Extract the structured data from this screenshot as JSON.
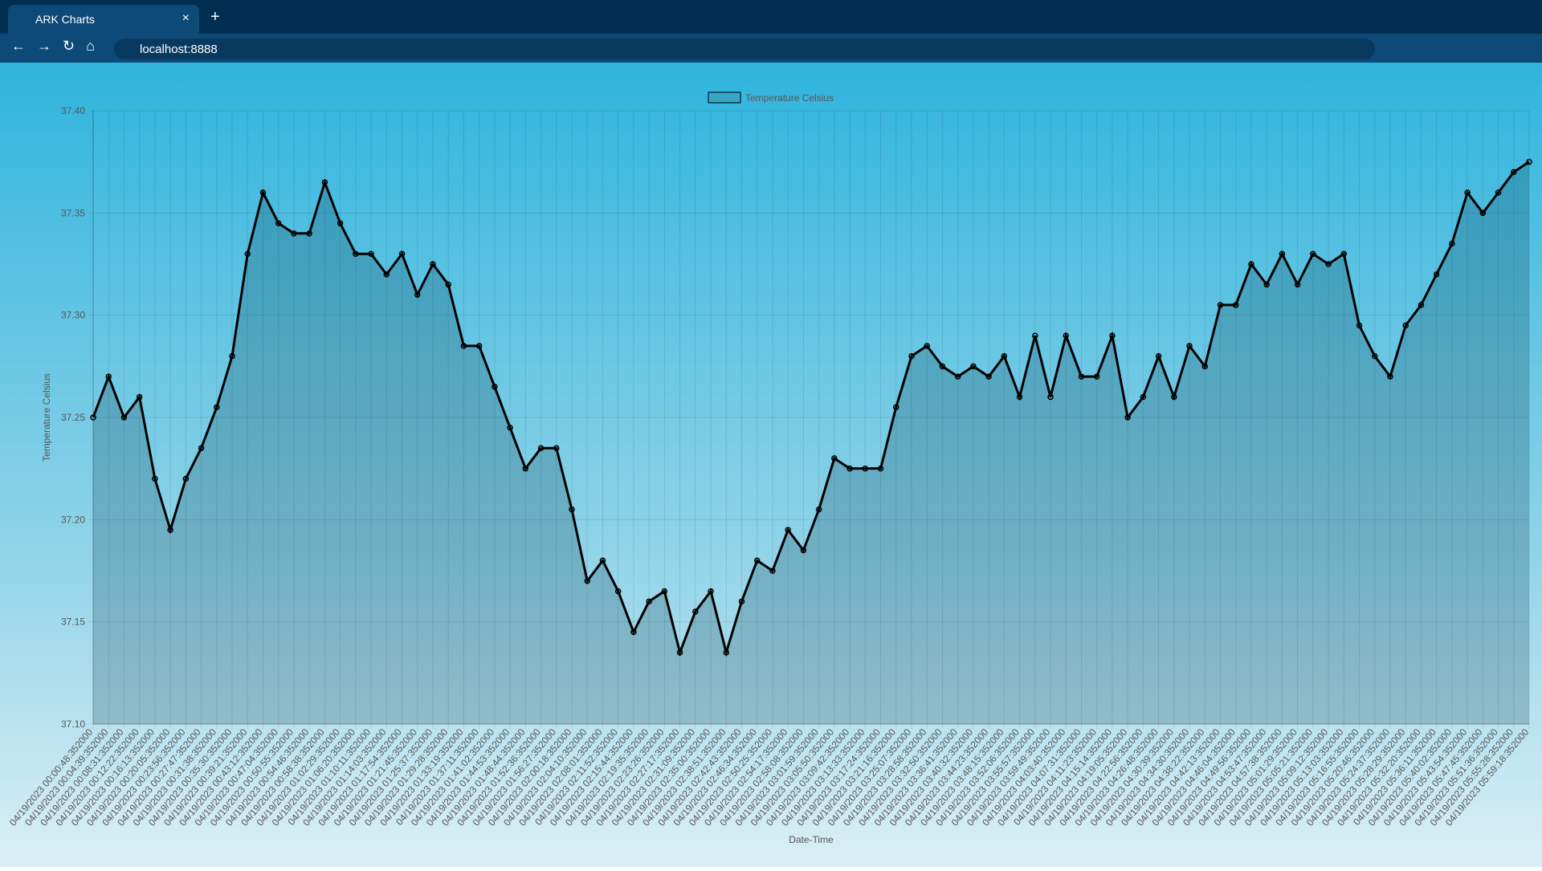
{
  "browser": {
    "tab_title": "ARK Charts",
    "url": "localhost:8888"
  },
  "chart_data": {
    "type": "line",
    "x_label": "Date-Time",
    "y_label": "Temperature Celsius",
    "categories": [
      "04/19/2023 00:00:48:352000",
      "04/19/2023 00:04:39:352000",
      "04/19/2023 00:08:31:352000",
      "04/19/2023 00:12:22:352000",
      "04/19/2023 00:16:13:352000",
      "04/19/2023 00:20:05:352000",
      "04/19/2023 00:23:56:352000",
      "04/19/2023 00:27:47:352000",
      "04/19/2023 00:31:38:352000",
      "04/19/2023 00:35:30:352000",
      "04/19/2023 00:39:21:352000",
      "04/19/2023 00:43:12:352000",
      "04/19/2023 00:47:04:352000",
      "04/19/2023 00:50:55:352000",
      "04/19/2023 00:54:46:352000",
      "04/19/2023 00:58:38:352000",
      "04/19/2023 01:02:29:352000",
      "04/19/2023 01:06:20:352000",
      "04/19/2023 01:10:11:352000",
      "04/19/2023 01:14:03:352000",
      "04/19/2023 01:17:54:352000",
      "04/19/2023 01:21:45:352000",
      "04/19/2023 01:25:37:352000",
      "04/19/2023 01:29:28:352000",
      "04/19/2023 01:33:19:352000",
      "04/19/2023 01:37:11:352000",
      "04/19/2023 01:41:02:352000",
      "04/19/2023 01:44:53:352000",
      "04/19/2023 01:48:44:352000",
      "04/19/2023 01:52:36:352000",
      "04/19/2023 01:56:27:352000",
      "04/19/2023 02:00:18:352000",
      "04/19/2023 02:04:10:352000",
      "04/19/2023 02:08:01:352000",
      "04/19/2023 02:11:52:352000",
      "04/19/2023 02:15:44:352000",
      "04/19/2023 02:19:35:352000",
      "04/19/2023 02:23:26:352000",
      "04/19/2023 02:27:17:352000",
      "04/19/2023 02:31:09:352000",
      "04/19/2023 02:35:00:352000",
      "04/19/2023 02:38:51:352000",
      "04/19/2023 02:42:43:352000",
      "04/19/2023 02:46:34:352000",
      "04/19/2023 02:50:25:352000",
      "04/19/2023 02:54:17:352000",
      "04/19/2023 02:58:08:352000",
      "04/19/2023 03:01:59:352000",
      "04/19/2023 03:05:50:352000",
      "04/19/2023 03:09:42:352000",
      "04/19/2023 03:13:33:352000",
      "04/19/2023 03:17:24:352000",
      "04/19/2023 03:21:16:352000",
      "04/19/2023 03:25:07:352000",
      "04/19/2023 03:28:58:352000",
      "04/19/2023 03:32:50:352000",
      "04/19/2023 03:36:41:352000",
      "04/19/2023 03:40:32:352000",
      "04/19/2023 03:44:23:352000",
      "04/19/2023 03:48:15:352000",
      "04/19/2023 03:52:06:352000",
      "04/19/2023 03:55:57:352000",
      "04/19/2023 03:59:49:352000",
      "04/19/2023 04:03:40:352000",
      "04/19/2023 04:07:31:352000",
      "04/19/2023 04:11:23:352000",
      "04/19/2023 04:15:14:352000",
      "04/19/2023 04:19:05:352000",
      "04/19/2023 04:22:56:352000",
      "04/19/2023 04:26:48:352000",
      "04/19/2023 04:30:39:352000",
      "04/19/2023 04:34:30:352000",
      "04/19/2023 04:38:22:352000",
      "04/19/2023 04:42:13:352000",
      "04/19/2023 04:46:04:352000",
      "04/19/2023 04:49:56:352000",
      "04/19/2023 04:53:47:352000",
      "04/19/2023 04:57:38:352000",
      "04/19/2023 05:01:29:352000",
      "04/19/2023 05:05:21:352000",
      "04/19/2023 05:09:12:352000",
      "04/19/2023 05:13:03:352000",
      "04/19/2023 05:16:55:352000",
      "04/19/2023 05:20:46:352000",
      "04/19/2023 05:24:37:352000",
      "04/19/2023 05:28:29:352000",
      "04/19/2023 05:32:20:352000",
      "04/19/2023 05:36:11:352000",
      "04/19/2023 05:40:02:352000",
      "04/19/2023 05:43:54:352000",
      "04/19/2023 05:47:45:352000",
      "04/19/2023 05:51:36:352000",
      "04/19/2023 05:55:28:352000",
      "04/19/2023 05:59:18:352000"
    ],
    "series": [
      {
        "name": "Temperature Celsius",
        "color": "#000000",
        "fill": "rgba(0,50,70,0.22)",
        "legend_fill": "#3aa6c4",
        "values": [
          37.25,
          37.27,
          37.25,
          37.26,
          37.22,
          37.195,
          37.22,
          37.235,
          37.255,
          37.28,
          37.33,
          37.36,
          37.345,
          37.34,
          37.34,
          37.365,
          37.345,
          37.33,
          37.33,
          37.32,
          37.33,
          37.31,
          37.325,
          37.315,
          37.285,
          37.285,
          37.265,
          37.245,
          37.225,
          37.235,
          37.235,
          37.205,
          37.17,
          37.18,
          37.165,
          37.145,
          37.16,
          37.165,
          37.135,
          37.155,
          37.165,
          37.135,
          37.16,
          37.18,
          37.175,
          37.195,
          37.185,
          37.205,
          37.23,
          37.225,
          37.225,
          37.225,
          37.255,
          37.28,
          37.285,
          37.275,
          37.27,
          37.275,
          37.27,
          37.28,
          37.26,
          37.29,
          37.26,
          37.29,
          37.27,
          37.27,
          37.29,
          37.25,
          37.26,
          37.28,
          37.26,
          37.285,
          37.275,
          37.305,
          37.305,
          37.325,
          37.315,
          37.33,
          37.315,
          37.33,
          37.325,
          37.33,
          37.295,
          37.28,
          37.27,
          37.295,
          37.305,
          37.32,
          37.335,
          37.36,
          37.35,
          37.36,
          37.37,
          37.375
        ]
      }
    ],
    "ylim": [
      37.1,
      37.4
    ],
    "yticks": [
      {
        "value": 37.1,
        "label": "37.10"
      },
      37.15,
      {
        "value": 37.2,
        "label": "37.20"
      },
      37.25,
      {
        "value": 37.3,
        "label": "37.30"
      },
      37.35,
      {
        "value": 37.4,
        "label": "37.40"
      }
    ],
    "grid": true,
    "legend": "top"
  }
}
